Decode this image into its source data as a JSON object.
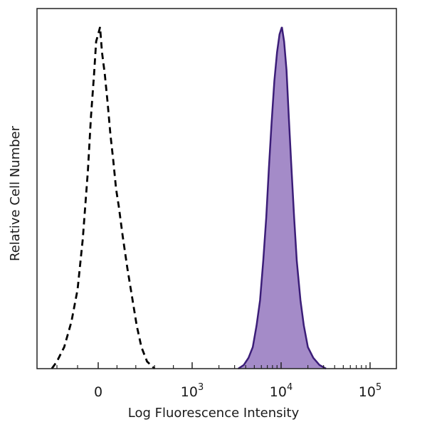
{
  "chart_data": {
    "type": "area",
    "xlabel": "Log Fluorescence Intensity",
    "ylabel": "Relative Cell Number",
    "x_scale": "biexponential",
    "xlim": [
      -600,
      180000
    ],
    "ylim": [
      0,
      100
    ],
    "grid": false,
    "x_ticks": [
      {
        "value": 0,
        "label": "0",
        "base": "0",
        "exp": ""
      },
      {
        "value": 1000,
        "label": "10^3",
        "base": "10",
        "exp": "3"
      },
      {
        "value": 10000,
        "label": "10^4",
        "base": "10",
        "exp": "4"
      },
      {
        "value": 100000,
        "label": "10^5",
        "base": "10",
        "exp": "5"
      }
    ],
    "series": [
      {
        "style": "dashed outline",
        "color": "#000000",
        "points": [
          [
            -450,
            0
          ],
          [
            -400,
            2
          ],
          [
            -330,
            6
          ],
          [
            -260,
            13
          ],
          [
            -200,
            22
          ],
          [
            -150,
            36
          ],
          [
            -100,
            55
          ],
          [
            -70,
            70
          ],
          [
            -40,
            82
          ],
          [
            -20,
            91
          ],
          [
            0,
            93
          ],
          [
            20,
            95
          ],
          [
            40,
            88
          ],
          [
            70,
            82
          ],
          [
            100,
            74
          ],
          [
            130,
            65
          ],
          [
            160,
            58
          ],
          [
            190,
            50
          ],
          [
            220,
            45
          ],
          [
            260,
            37
          ],
          [
            310,
            28
          ],
          [
            360,
            20
          ],
          [
            410,
            12
          ],
          [
            460,
            6
          ],
          [
            520,
            2
          ],
          [
            600,
            0
          ]
        ]
      },
      {
        "style": "filled",
        "color": "#3b1d78",
        "fill": "#a48bc8",
        "points": [
          [
            3300,
            0
          ],
          [
            3800,
            1
          ],
          [
            4300,
            3
          ],
          [
            4800,
            6
          ],
          [
            5300,
            12
          ],
          [
            5800,
            19
          ],
          [
            6300,
            30
          ],
          [
            6800,
            42
          ],
          [
            7300,
            56
          ],
          [
            7800,
            68
          ],
          [
            8400,
            80
          ],
          [
            9000,
            88
          ],
          [
            9600,
            93
          ],
          [
            10200,
            95
          ],
          [
            10800,
            91
          ],
          [
            11500,
            83
          ],
          [
            12200,
            70
          ],
          [
            13000,
            57
          ],
          [
            14000,
            42
          ],
          [
            15000,
            30
          ],
          [
            16500,
            19
          ],
          [
            18000,
            12
          ],
          [
            20000,
            6
          ],
          [
            23000,
            3
          ],
          [
            27000,
            1
          ],
          [
            32000,
            0
          ]
        ]
      }
    ]
  }
}
